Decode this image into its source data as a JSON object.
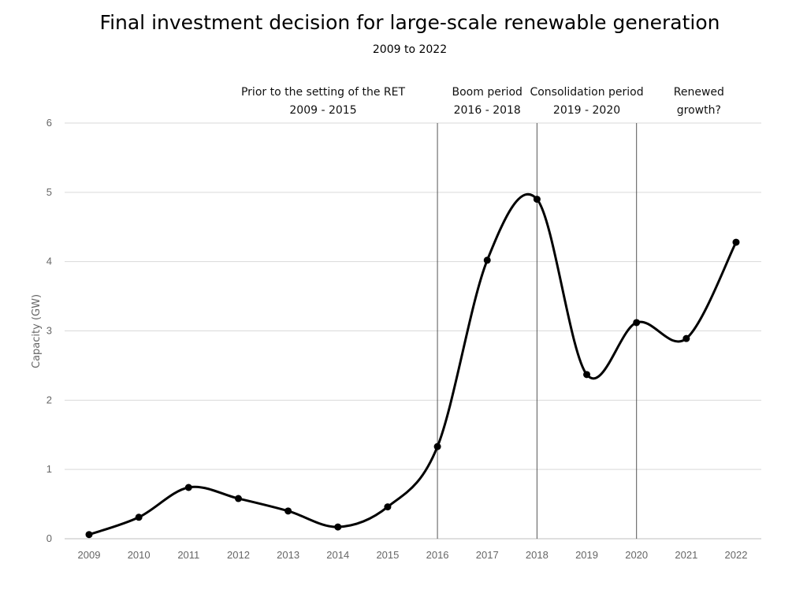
{
  "chart_data": {
    "type": "line",
    "title": "Final investment decision for large-scale renewable generation",
    "subtitle": "2009 to 2022",
    "xlabel": "",
    "ylabel": "Capacity (GW)",
    "ylim": [
      0,
      6
    ],
    "yticks": [
      "0",
      "1",
      "2",
      "3",
      "4",
      "5",
      "6"
    ],
    "grid": true,
    "categories": [
      "2009",
      "2010",
      "2011",
      "2012",
      "2013",
      "2014",
      "2015",
      "2016",
      "2017",
      "2018",
      "2019",
      "2020",
      "2021",
      "2022"
    ],
    "values": [
      0.06,
      0.31,
      0.74,
      0.58,
      0.4,
      0.17,
      0.46,
      1.33,
      4.02,
      4.9,
      2.37,
      3.12,
      2.89,
      4.28
    ],
    "line_color": "#000000",
    "periods": [
      {
        "line1": "Prior to the setting of the RET",
        "line2": "2009 - 2015"
      },
      {
        "line1": "Boom period",
        "line2": "2016 - 2018"
      },
      {
        "line1": "Consolidation period",
        "line2": "2019 - 2020"
      },
      {
        "line1": "Renewed",
        "line2": "growth?"
      }
    ],
    "period_dividers": [
      "2016",
      "2018",
      "2020"
    ]
  }
}
